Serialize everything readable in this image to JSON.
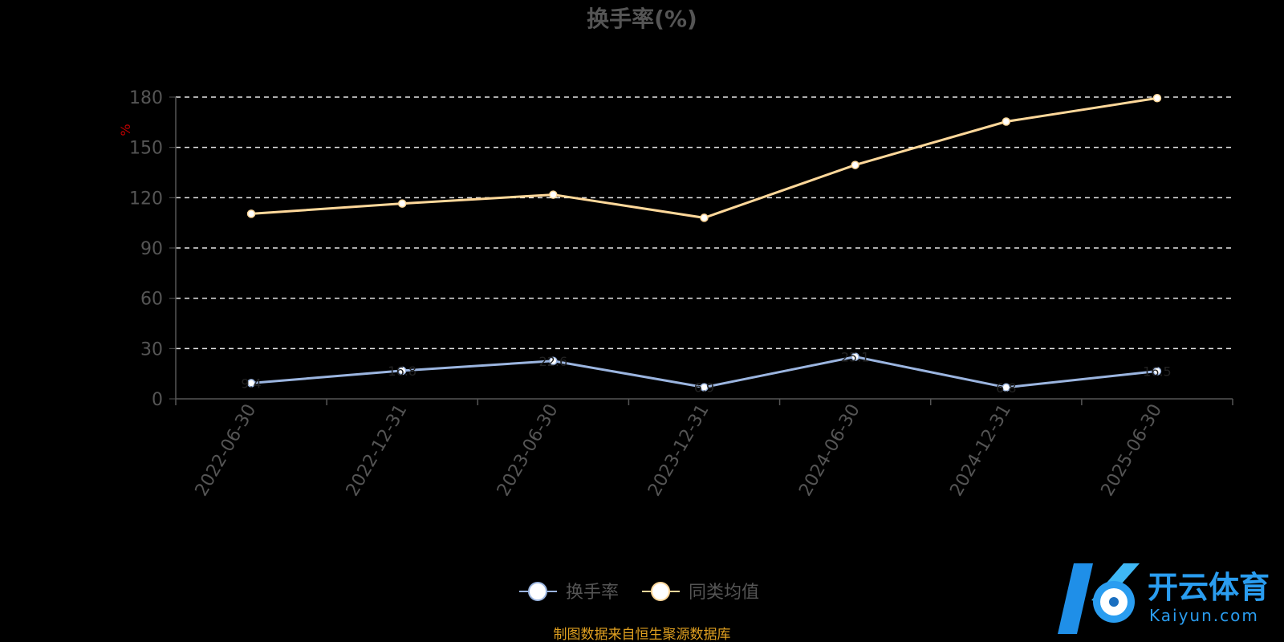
{
  "chart_data": {
    "type": "line",
    "title": "换手率(%)",
    "ylabel": "%",
    "xlabel": "",
    "ylim": [
      0,
      180
    ],
    "yticks": [
      0,
      30,
      60,
      90,
      120,
      150,
      180
    ],
    "grid": true,
    "legend_position": "bottom-center",
    "categories": [
      "2022-06-30",
      "2022-12-31",
      "2023-06-30",
      "2023-12-31",
      "2024-06-30",
      "2024-12-31",
      "2025-06-30"
    ],
    "series": [
      {
        "name": "换手率",
        "color": "#9bb5e0",
        "values": [
          9.4,
          16.8,
          22.6,
          6.9,
          25.1,
          6.8,
          16.5
        ]
      },
      {
        "name": "同类均值",
        "color": "#ffd89a",
        "values": [
          110.4,
          116.5,
          121.8,
          108.0,
          139.5,
          165.4,
          179.4
        ]
      }
    ]
  },
  "source_note": "制图数据来自恒生聚源数据库",
  "watermark": {
    "brand": "开云体育",
    "domain": "Kaiyun.com"
  }
}
